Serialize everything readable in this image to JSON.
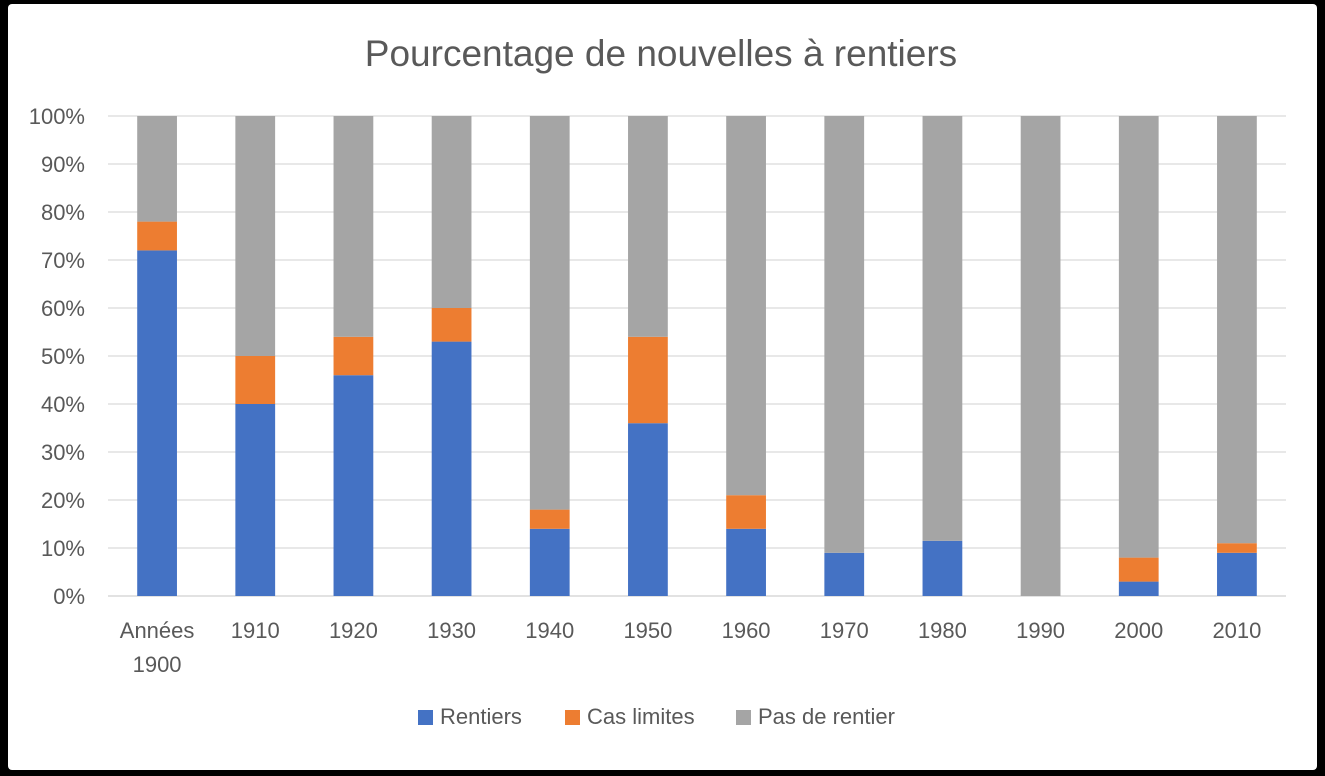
{
  "chart_data": {
    "type": "bar",
    "stacked": true,
    "percent_stacked": true,
    "title": "Pourcentage de nouvelles à rentiers",
    "categories": [
      "Années 1900",
      "1910",
      "1920",
      "1930",
      "1940",
      "1950",
      "1960",
      "1970",
      "1980",
      "1990",
      "2000",
      "2010"
    ],
    "series": [
      {
        "name": "Rentiers",
        "color": "#4472C4",
        "values": [
          72,
          40,
          46,
          53,
          14,
          36,
          14,
          9,
          11.5,
          0,
          3,
          9
        ]
      },
      {
        "name": "Cas limites",
        "color": "#ED7D31",
        "values": [
          6,
          10,
          8,
          7,
          4,
          18,
          7,
          0,
          0,
          0,
          5,
          2
        ]
      },
      {
        "name": "Pas de rentier",
        "color": "#A5A5A5",
        "values": [
          22,
          50,
          46,
          40,
          82,
          46,
          79,
          91,
          88.5,
          100,
          92,
          89
        ]
      }
    ],
    "yticks": [
      "0%",
      "10%",
      "20%",
      "30%",
      "40%",
      "50%",
      "60%",
      "70%",
      "80%",
      "90%",
      "100%"
    ],
    "ylim": [
      0,
      100
    ],
    "grid": true,
    "legend_position": "bottom"
  }
}
